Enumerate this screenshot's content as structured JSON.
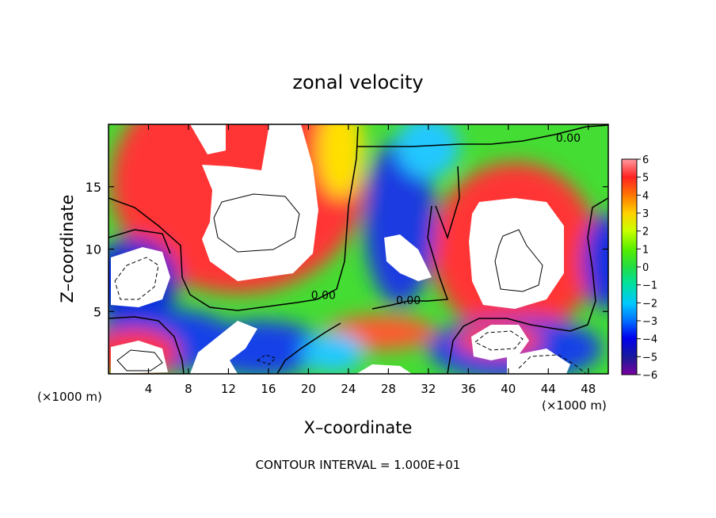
{
  "chart_data": {
    "type": "heatmap",
    "title": "zonal velocity",
    "xlabel": "X–coordinate",
    "ylabel": "Z–coordinate",
    "x_unit_left": "(×1000 m)",
    "x_unit_right": "(×1000 m)",
    "footer": "CONTOUR INTERVAL = 1.000E+01",
    "xlim": [
      0,
      50
    ],
    "ylim": [
      0,
      20
    ],
    "x_ticks": [
      4,
      8,
      12,
      16,
      20,
      24,
      28,
      32,
      36,
      40,
      44,
      48
    ],
    "y_ticks": [
      5,
      10,
      15
    ],
    "colorbar": {
      "range": [
        -6,
        6
      ],
      "ticks": [
        "6",
        "5",
        "4",
        "3",
        "2",
        "1",
        "0",
        "−1",
        "−2",
        "−3",
        "−4",
        "−5",
        "−6"
      ]
    },
    "contour_labels": [
      {
        "text": "0.00",
        "x": 46,
        "y": 18.6
      },
      {
        "text": "0.00",
        "x": 21.5,
        "y": 6.0
      },
      {
        "text": "0.00",
        "x": 30,
        "y": 5.6
      }
    ],
    "colors": {
      "saturated": "#ffffff",
      "pos_high": "#ff3030",
      "neutral": "#33dd33",
      "neg_high": "#1010c0"
    }
  }
}
